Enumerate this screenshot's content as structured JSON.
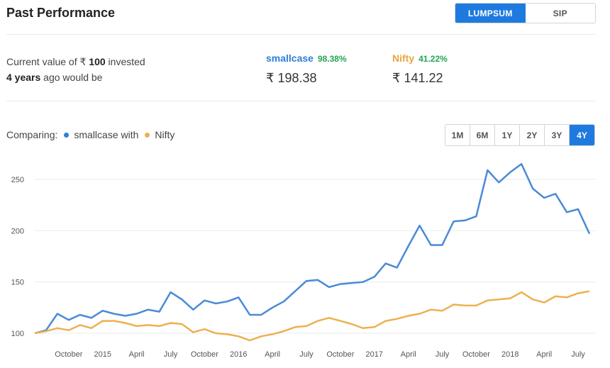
{
  "header": {
    "title": "Past Performance"
  },
  "toggle": {
    "options": [
      "LUMPSUM",
      "SIP"
    ],
    "active": "LUMPSUM"
  },
  "summary": {
    "line1": "Current value of ₹",
    "amount": "100",
    "line1_suffix": "invested",
    "period": "4 years",
    "line2_suffix": "ago would be"
  },
  "metrics": [
    {
      "name": "smallcase",
      "pct": "98.38%",
      "value": "₹ 198.38",
      "color": "#2d7fd6"
    },
    {
      "name": "Nifty",
      "pct": "41.22%",
      "value": "₹ 141.22",
      "color": "#e8a83c"
    }
  ],
  "compare": {
    "label": "Comparing:",
    "series_a": "smallcase with",
    "series_b": "Nifty"
  },
  "ranges": {
    "options": [
      "1M",
      "6M",
      "1Y",
      "2Y",
      "3Y",
      "4Y"
    ],
    "active": "4Y"
  },
  "chart_data": {
    "type": "line",
    "y_ticks": [
      100,
      150,
      200,
      250
    ],
    "ylim": [
      95,
      270
    ],
    "x_ticks": [
      {
        "i": 3,
        "label": "October"
      },
      {
        "i": 6,
        "label": "2015"
      },
      {
        "i": 9,
        "label": "April"
      },
      {
        "i": 12,
        "label": "July"
      },
      {
        "i": 15,
        "label": "October"
      },
      {
        "i": 18,
        "label": "2016"
      },
      {
        "i": 21,
        "label": "April"
      },
      {
        "i": 24,
        "label": "July"
      },
      {
        "i": 27,
        "label": "October"
      },
      {
        "i": 30,
        "label": "2017"
      },
      {
        "i": 33,
        "label": "April"
      },
      {
        "i": 36,
        "label": "July"
      },
      {
        "i": 39,
        "label": "October"
      },
      {
        "i": 42,
        "label": "2018"
      },
      {
        "i": 45,
        "label": "April"
      },
      {
        "i": 48,
        "label": "July"
      }
    ],
    "series": [
      {
        "name": "smallcase",
        "color": "#4a8ad8",
        "values": [
          100,
          103,
          119,
          113,
          118,
          115,
          122,
          119,
          117,
          119,
          123,
          121,
          140,
          133,
          123,
          132,
          129,
          131,
          135,
          118,
          118,
          125,
          131,
          141,
          151,
          152,
          145,
          148,
          149,
          150,
          155,
          168,
          164,
          185,
          205,
          186,
          186,
          209,
          210,
          214,
          259,
          247,
          257,
          265,
          241,
          232,
          236,
          218,
          221,
          197
        ]
      },
      {
        "name": "Nifty",
        "color": "#ecb14f",
        "values": [
          100,
          102,
          105,
          103,
          108,
          105,
          112,
          112,
          110,
          107,
          108,
          107,
          110,
          109,
          101,
          104,
          100,
          99,
          97,
          93,
          97,
          99,
          102,
          106,
          107,
          112,
          115,
          112,
          109,
          105,
          106,
          112,
          114,
          117,
          119,
          123,
          122,
          128,
          127,
          127,
          132,
          133,
          134,
          140,
          133,
          130,
          136,
          135,
          139,
          141
        ]
      }
    ]
  }
}
